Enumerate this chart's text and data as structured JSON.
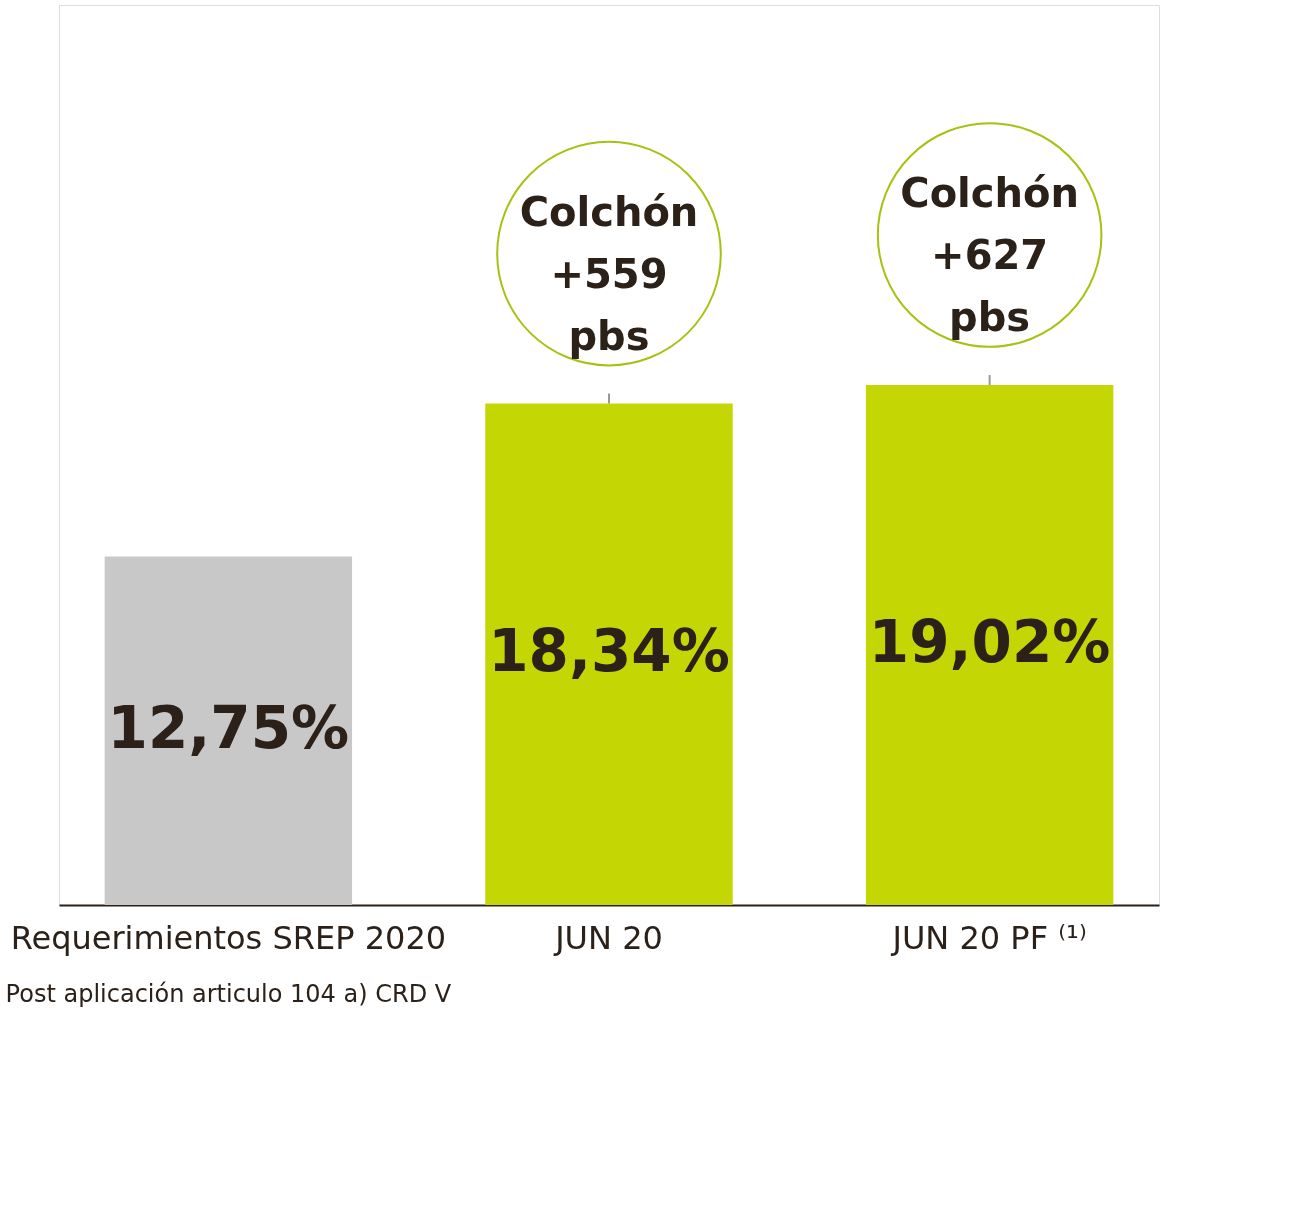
{
  "chart_data": {
    "type": "bar",
    "categories": [
      "Requerimientos SREP 2020",
      "JUN 20",
      "JUN 20 PF ⁽¹⁾"
    ],
    "values": [
      12.75,
      18.34,
      19.02
    ],
    "colors": [
      "#c8c8c8",
      "#c5d605",
      "#c5d605"
    ],
    "value_labels": [
      "12,75%",
      "18,34%",
      "19,02%"
    ],
    "annotations": [
      {
        "text": "Colchón +559 pbs",
        "x": "JUN 20",
        "y": 18.34
      },
      {
        "text": "Colchón +627 pbs",
        "x": "JUN 20 PF ⁽¹⁾",
        "y": 19.02
      },
      "Post aplicación articulo 104 a) CRD V"
    ]
  }
}
